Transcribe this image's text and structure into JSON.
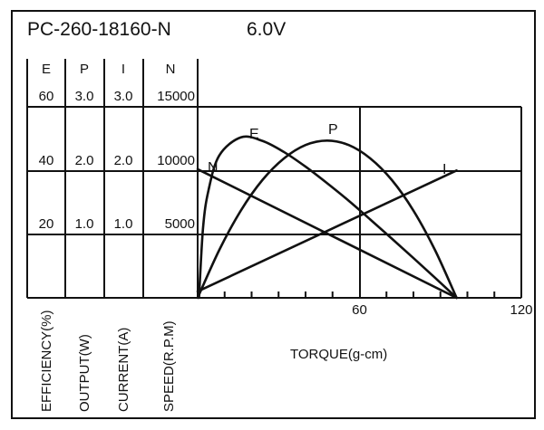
{
  "chart_data": {
    "type": "line",
    "title": "PC-260-18160-N",
    "voltage": "6.0V",
    "xlabel": "TORQUE(g-cm)",
    "xlim": [
      0,
      120
    ],
    "x_ticks": [
      "60",
      "120"
    ],
    "column_headers": [
      "E",
      "P",
      "I",
      "N"
    ],
    "axes": [
      {
        "key": "E",
        "label": "EFFICIENCY(%)",
        "ticks": [
          "20",
          "40",
          "60"
        ],
        "range": [
          0,
          60
        ]
      },
      {
        "key": "P",
        "label": "OUTPUT(W)",
        "ticks": [
          "1.0",
          "2.0",
          "3.0"
        ],
        "range": [
          0,
          3
        ]
      },
      {
        "key": "I",
        "label": "CURRENT(A)",
        "ticks": [
          "1.0",
          "2.0",
          "3.0"
        ],
        "range": [
          0,
          3
        ]
      },
      {
        "key": "N",
        "label": "SPEED(R.P.M)",
        "ticks": [
          "5000",
          "10000",
          "15000"
        ],
        "range": [
          0,
          15000
        ]
      }
    ],
    "grid": true,
    "series": [
      {
        "name": "E",
        "axis": "E",
        "x": [
          0.5,
          2,
          4,
          8,
          16,
          24,
          32,
          40,
          48,
          56,
          64,
          72,
          80,
          88,
          96
        ],
        "y": [
          0,
          22,
          33.7,
          44.7,
          50.4,
          49.3,
          45.8,
          41.2,
          36,
          30.5,
          24.6,
          18.6,
          12.5,
          6.3,
          0
        ]
      },
      {
        "name": "P",
        "axis": "P",
        "x": [
          0,
          8,
          16,
          24,
          32,
          40,
          48,
          56,
          64,
          72,
          80,
          88,
          96
        ],
        "y": [
          0,
          0.75,
          1.37,
          1.85,
          2.19,
          2.4,
          2.47,
          2.4,
          2.19,
          1.85,
          1.37,
          0.75,
          0
        ]
      },
      {
        "name": "I",
        "axis": "I",
        "x": [
          0,
          96
        ],
        "y": [
          0.1,
          2.0
        ]
      },
      {
        "name": "N",
        "axis": "N",
        "x": [
          0,
          96
        ],
        "y": [
          10100,
          0
        ]
      }
    ]
  }
}
